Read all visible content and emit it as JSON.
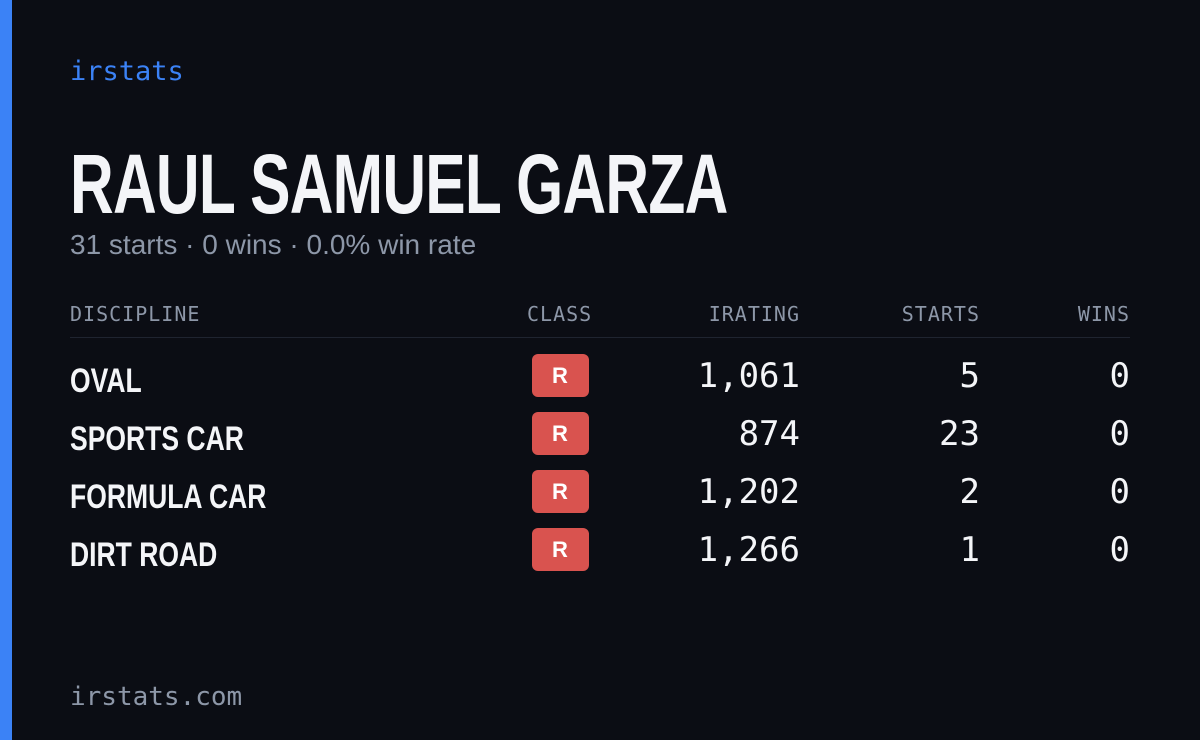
{
  "brand": "irstats",
  "player": {
    "name": "RAUL SAMUEL GARZA",
    "summary": "31 starts · 0 wins · 0.0% win rate"
  },
  "table": {
    "columns": [
      "DISCIPLINE",
      "CLASS",
      "IRATING",
      "STARTS",
      "WINS"
    ],
    "rows": [
      [
        "OVAL",
        "R",
        "1,061",
        "5",
        "0"
      ],
      [
        "SPORTS CAR",
        "R",
        "874",
        "23",
        "0"
      ],
      [
        "FORMULA CAR",
        "R",
        "1,202",
        "2",
        "0"
      ],
      [
        "DIRT ROAD",
        "R",
        "1,266",
        "1",
        "0"
      ]
    ]
  },
  "footer": "irstats.com"
}
